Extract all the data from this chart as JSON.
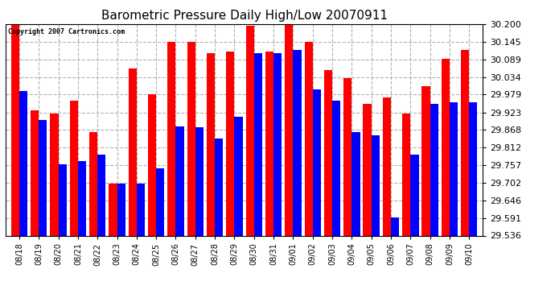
{
  "title": "Barometric Pressure Daily High/Low 20070911",
  "copyright": "Copyright 2007 Cartronics.com",
  "dates": [
    "08/18",
    "08/19",
    "08/20",
    "08/21",
    "08/22",
    "08/23",
    "08/24",
    "08/25",
    "08/26",
    "08/27",
    "08/28",
    "08/29",
    "08/30",
    "08/31",
    "09/01",
    "09/02",
    "09/03",
    "09/04",
    "09/05",
    "09/06",
    "09/07",
    "09/08",
    "09/09",
    "09/10"
  ],
  "highs": [
    30.2,
    29.93,
    29.92,
    29.96,
    29.86,
    29.7,
    30.06,
    29.98,
    30.145,
    30.145,
    30.11,
    30.115,
    30.195,
    30.115,
    30.2,
    30.145,
    30.055,
    30.03,
    29.95,
    29.97,
    29.92,
    30.005,
    30.09,
    30.12
  ],
  "lows": [
    29.99,
    29.9,
    29.76,
    29.77,
    29.79,
    29.7,
    29.7,
    29.748,
    29.88,
    29.875,
    29.84,
    29.91,
    30.11,
    30.11,
    30.12,
    29.995,
    29.96,
    29.86,
    29.85,
    29.594,
    29.79,
    29.95,
    29.955,
    29.955
  ],
  "high_color": "#FF0000",
  "low_color": "#0000FF",
  "bg_color": "#FFFFFF",
  "grid_color": "#AAAAAA",
  "bar_width": 0.42,
  "ylim_min": 29.536,
  "ylim_max": 30.2,
  "yticks": [
    29.536,
    29.591,
    29.646,
    29.702,
    29.757,
    29.812,
    29.868,
    29.923,
    29.979,
    30.034,
    30.089,
    30.145,
    30.2
  ],
  "figwidth": 6.9,
  "figheight": 3.75,
  "dpi": 100
}
